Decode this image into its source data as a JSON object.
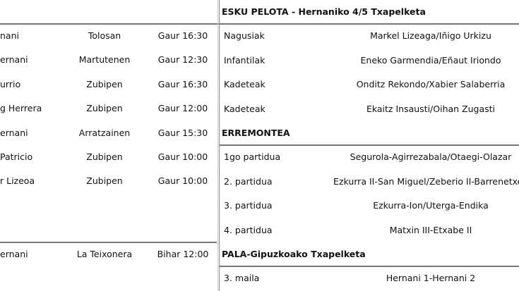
{
  "left": {
    "rows": [
      {
        "team": "nani",
        "venue": "Tolosan",
        "time": "Gaur 16:30"
      },
      {
        "team": "ernani",
        "venue": "Martutenen",
        "time": "Gaur 12:30"
      },
      {
        "team": "urrio",
        "venue": "Zubipen",
        "time": "Gaur 16:30"
      },
      {
        "team": "g Herrera",
        "venue": "Zubipen",
        "time": "Gaur 12:00"
      },
      {
        "team": "ernani",
        "venue": "Arratzainen",
        "time": "Gaur 15:30"
      },
      {
        "team": "Patricio",
        "venue": "Zubipen",
        "time": "Gaur 10:00"
      },
      {
        "team": "r Lizeoa",
        "venue": "Zubipen",
        "time": "Gaur 10:00"
      }
    ],
    "bottom_row": {
      "team": "ernani",
      "venue": "La Teixonera",
      "time": "Bihar 12:00"
    }
  },
  "right": {
    "sections": [
      {
        "title": "ESKU PELOTA - Hernaniko 4/5 Txapelketa",
        "rows": [
          {
            "label": "Nagusiak",
            "value": "Markel Lizeaga/Iñigo Urkizu"
          },
          {
            "label": "Infantilak",
            "value": "Eneko Garmendia/Eñaut Iriondo"
          },
          {
            "label": "Kadeteak",
            "value": "Onditz Rekondo/Xabier Salaberria"
          },
          {
            "label": "Kadeteak",
            "value": "Ekaitz Insausti/Oihan Zugasti"
          }
        ]
      },
      {
        "title": "ERREMONTEA",
        "rows": [
          {
            "label": "1go partidua",
            "value": "Segurola-Agirrezabala/Otaegi-Olazar"
          },
          {
            "label": "2. partidua",
            "value": "Ezkurra II-San Miguel/Zeberio II-Barrenetxea"
          },
          {
            "label": "3. partidua",
            "value": "Ezkurra-Ion/Uterga-Endika"
          },
          {
            "label": "4. partidua",
            "value": "Matxin III-Etxabe II"
          }
        ]
      },
      {
        "title": "PALA-Gipuzkoako Txapelketa",
        "rows": [
          {
            "label": "3. maila",
            "value": "Hernani 1-Hernani 2"
          }
        ]
      }
    ]
  }
}
